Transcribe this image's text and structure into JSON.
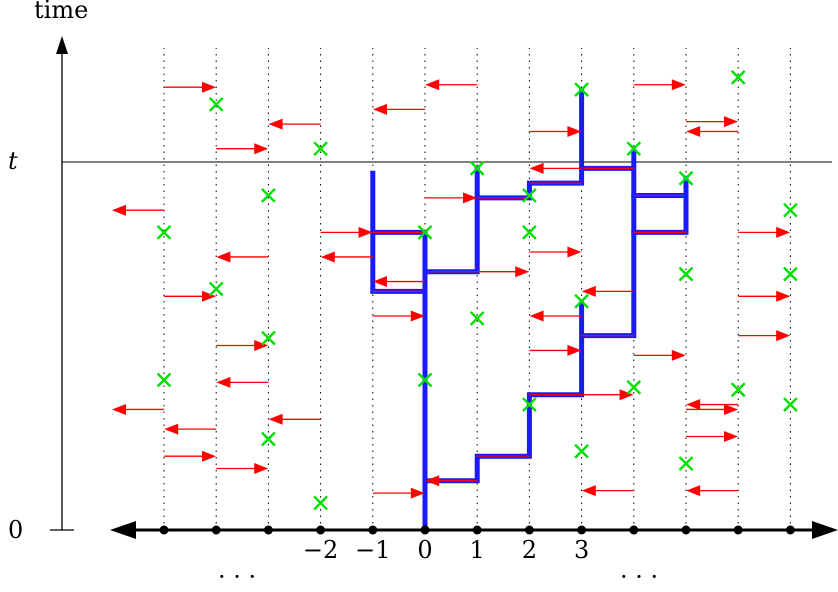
{
  "labels": {
    "time_axis": "time",
    "t_marker": "t",
    "zero_marker": "0",
    "left_dots": "· · ·",
    "right_dots": "· · ·"
  },
  "site_labels": [
    "−2",
    "−1",
    "0",
    "1",
    "2",
    "3"
  ],
  "colors": {
    "axis": "#000000",
    "site_line": "#000000",
    "arrow": "#ff0000",
    "recovery": "#00e000",
    "path": "#1a1aff"
  },
  "diagram": {
    "sites": [
      -5,
      -4,
      -3,
      -2,
      -1,
      0,
      1,
      2,
      3,
      4,
      5,
      6,
      7
    ],
    "t_level": 0.725,
    "arrows": [
      {
        "site": -5,
        "dir": "right",
        "time": 0.9
      },
      {
        "site": -5,
        "dir": "left",
        "time": 0.65
      },
      {
        "site": -5,
        "dir": "right",
        "time": 0.475
      },
      {
        "site": -5,
        "dir": "left",
        "time": 0.245
      },
      {
        "site": -5,
        "dir": "right",
        "time": 0.15
      },
      {
        "site": -4,
        "dir": "right",
        "time": 0.775
      },
      {
        "site": -4,
        "dir": "right",
        "time": 0.375
      },
      {
        "site": -4,
        "dir": "left",
        "time": 0.205
      },
      {
        "site": -4,
        "dir": "right",
        "time": 0.125
      },
      {
        "site": -3,
        "dir": "left",
        "time": 0.555
      },
      {
        "site": -3,
        "dir": "left",
        "time": 0.3
      },
      {
        "site": -2,
        "dir": "left",
        "time": 0.825
      },
      {
        "site": -2,
        "dir": "right",
        "time": 0.605
      },
      {
        "site": -2,
        "dir": "left",
        "time": 0.225
      },
      {
        "site": -1,
        "dir": "left",
        "time": 0.555
      },
      {
        "site": -1,
        "dir": "right",
        "time": 0.435
      },
      {
        "site": -1,
        "dir": "right",
        "time": 0.075
      },
      {
        "site": 0,
        "dir": "left",
        "time": 0.855
      },
      {
        "site": 0,
        "dir": "right",
        "time": 0.675
      },
      {
        "site": 0,
        "dir": "left",
        "time": 0.505
      },
      {
        "site": 1,
        "dir": "left",
        "time": 0.905
      },
      {
        "site": 1,
        "dir": "right",
        "time": 0.525
      },
      {
        "site": 1,
        "dir": "left",
        "time": 0.1
      },
      {
        "site": 2,
        "dir": "right",
        "time": 0.81
      },
      {
        "site": 2,
        "dir": "right",
        "time": 0.565
      },
      {
        "site": 2,
        "dir": "right",
        "time": 0.365
      },
      {
        "site": 3,
        "dir": "left",
        "time": 0.735
      },
      {
        "site": 3,
        "dir": "left",
        "time": 0.435
      },
      {
        "site": 3,
        "dir": "right",
        "time": 0.275
      },
      {
        "site": 4,
        "dir": "right",
        "time": 0.905
      },
      {
        "site": 4,
        "dir": "left",
        "time": 0.485
      },
      {
        "site": 4,
        "dir": "right",
        "time": 0.355
      },
      {
        "site": 4,
        "dir": "left",
        "time": 0.08
      },
      {
        "site": 5,
        "dir": "right",
        "time": 0.83
      },
      {
        "site": 5,
        "dir": "right",
        "time": 0.245
      },
      {
        "site": 5,
        "dir": "right",
        "time": 0.19
      },
      {
        "site": 6,
        "dir": "left",
        "time": 0.81
      },
      {
        "site": 6,
        "dir": "right",
        "time": 0.605
      },
      {
        "site": 6,
        "dir": "right",
        "time": 0.475
      },
      {
        "site": 6,
        "dir": "right",
        "time": 0.395
      },
      {
        "site": 6,
        "dir": "left",
        "time": 0.255
      },
      {
        "site": 6,
        "dir": "left",
        "time": 0.08
      }
    ],
    "recoveries": [
      {
        "site": -5,
        "time": 0.605
      },
      {
        "site": -5,
        "time": 0.305
      },
      {
        "site": -4,
        "time": 0.865
      },
      {
        "site": -4,
        "time": 0.49
      },
      {
        "site": -3,
        "time": 0.68
      },
      {
        "site": -3,
        "time": 0.39
      },
      {
        "site": -3,
        "time": 0.185
      },
      {
        "site": -2,
        "time": 0.775
      },
      {
        "site": -2,
        "time": 0.055
      },
      {
        "site": 0,
        "time": 0.605
      },
      {
        "site": 0,
        "time": 0.305
      },
      {
        "site": 1,
        "time": 0.735
      },
      {
        "site": 1,
        "time": 0.43
      },
      {
        "site": 2,
        "time": 0.68
      },
      {
        "site": 2,
        "time": 0.605
      },
      {
        "site": 2,
        "time": 0.255
      },
      {
        "site": 3,
        "time": 0.895
      },
      {
        "site": 3,
        "time": 0.465
      },
      {
        "site": 3,
        "time": 0.16
      },
      {
        "site": 4,
        "time": 0.775
      },
      {
        "site": 4,
        "time": 0.29
      },
      {
        "site": 5,
        "time": 0.715
      },
      {
        "site": 5,
        "time": 0.52
      },
      {
        "site": 5,
        "time": 0.135
      },
      {
        "site": 6,
        "time": 0.92
      },
      {
        "site": 6,
        "time": 0.285
      },
      {
        "site": 7,
        "time": 0.65
      },
      {
        "site": 7,
        "time": 0.52
      },
      {
        "site": 7,
        "time": 0.255
      }
    ],
    "paths": [
      [
        [
          0,
          0.0
        ],
        [
          0,
          0.305
        ],
        [
          0,
          0.1
        ],
        [
          1,
          0.1
        ],
        [
          1,
          0.15
        ],
        [
          2,
          0.15
        ],
        [
          2,
          0.255
        ],
        [
          2,
          0.275
        ],
        [
          3,
          0.275
        ],
        [
          3,
          0.465
        ],
        [
          3,
          0.395
        ],
        [
          4,
          0.395
        ],
        [
          4,
          0.775
        ],
        [
          4,
          0.735
        ],
        [
          3,
          0.735
        ],
        [
          3,
          0.895
        ]
      ],
      [
        [
          0,
          0.0
        ],
        [
          0,
          0.485
        ],
        [
          -1,
          0.485
        ],
        [
          -1,
          0.725
        ]
      ],
      [
        [
          0,
          0.485
        ],
        [
          0,
          0.525
        ],
        [
          1,
          0.525
        ],
        [
          1,
          0.735
        ]
      ],
      [
        [
          0,
          0.485
        ],
        [
          0,
          0.605
        ],
        [
          -1,
          0.605
        ]
      ],
      [
        [
          1,
          0.675
        ],
        [
          2,
          0.675
        ],
        [
          2,
          0.705
        ],
        [
          3,
          0.705
        ],
        [
          3,
          0.735
        ]
      ],
      [
        [
          4,
          0.68
        ],
        [
          5,
          0.68
        ],
        [
          5,
          0.715
        ]
      ],
      [
        [
          4,
          0.605
        ],
        [
          5,
          0.605
        ],
        [
          5,
          0.68
        ]
      ]
    ]
  }
}
